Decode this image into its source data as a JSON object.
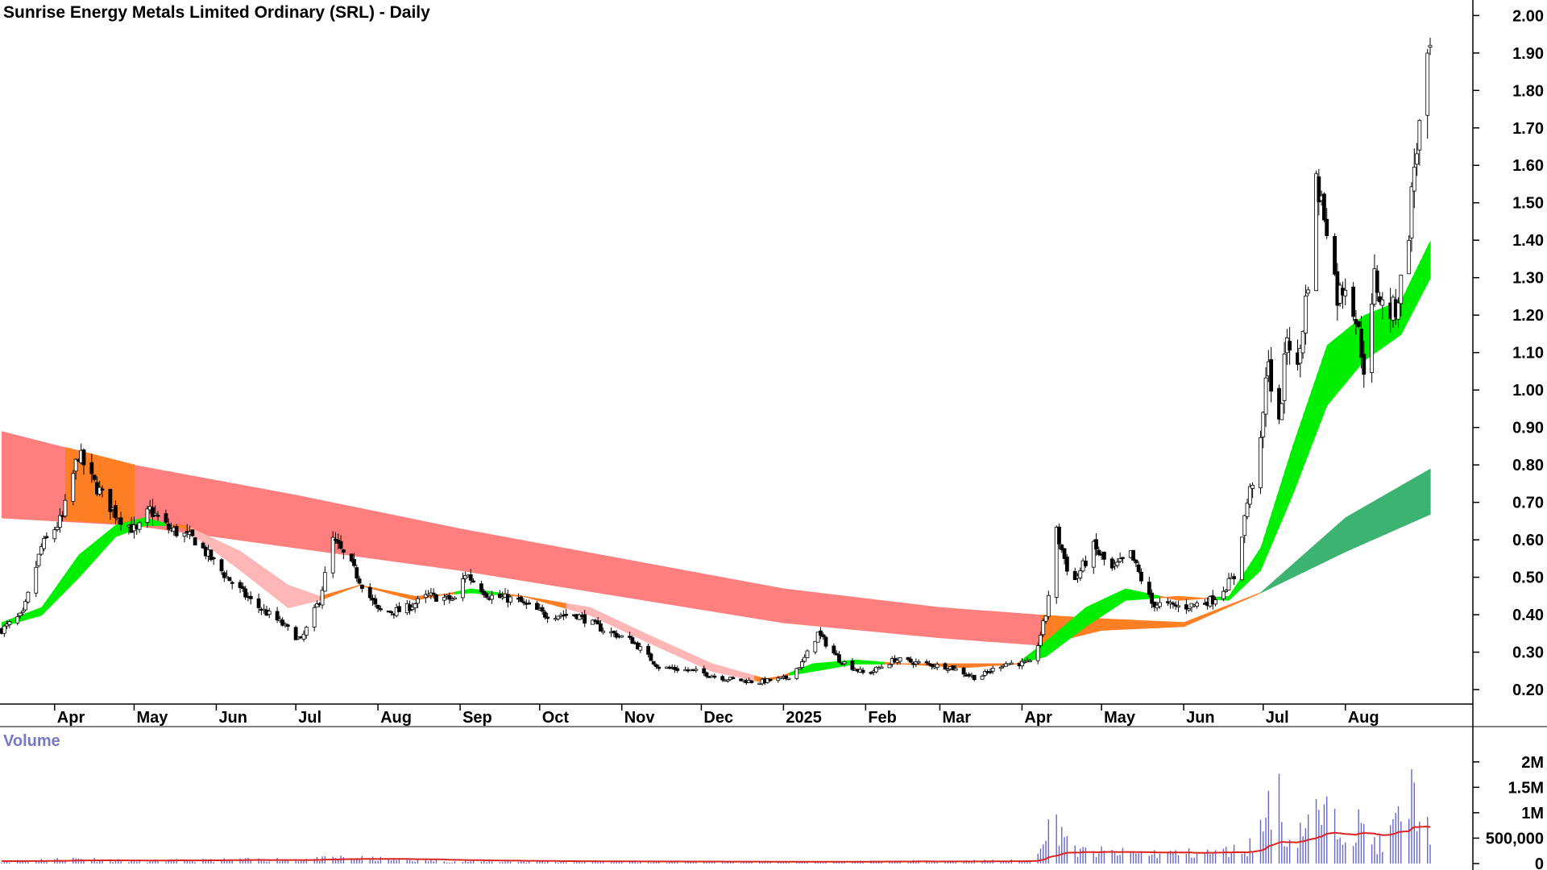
{
  "chart_data": [
    {
      "type": "candlestick",
      "title": "Sunrise Energy Metals Limited Ordinary (SRL) - Daily",
      "y_scale": "linear",
      "ylim": [
        0.17,
        2.02
      ],
      "y_ticks": [
        "2.00",
        "1.90",
        "1.80",
        "1.70",
        "1.60",
        "1.50",
        "1.40",
        "1.30",
        "1.20",
        "1.10",
        "1.00",
        "0.90",
        "0.80",
        "0.70",
        "0.60",
        "0.50",
        "0.40",
        "0.30",
        "0.20"
      ],
      "x_ticks": [
        "Apr",
        "May",
        "Jun",
        "Jul",
        "Aug",
        "Sep",
        "Oct",
        "Nov",
        "Dec",
        "2025",
        "Feb",
        "Mar",
        "Apr",
        "May",
        "Jun",
        "Jul",
        "Aug"
      ],
      "price_path": [
        {
          "date": "2024-03-12",
          "close": 0.36
        },
        {
          "date": "2024-03-20",
          "close": 0.4
        },
        {
          "date": "2024-03-27",
          "close": 0.58
        },
        {
          "date": "2024-04-04",
          "close": 0.66
        },
        {
          "date": "2024-04-10",
          "close": 0.83
        },
        {
          "date": "2024-04-15",
          "close": 0.76
        },
        {
          "date": "2024-04-24",
          "close": 0.67
        },
        {
          "date": "2024-05-02",
          "close": 0.62
        },
        {
          "date": "2024-05-07",
          "close": 0.68
        },
        {
          "date": "2024-05-14",
          "close": 0.63
        },
        {
          "date": "2024-05-24",
          "close": 0.6
        },
        {
          "date": "2024-06-05",
          "close": 0.5
        },
        {
          "date": "2024-06-15",
          "close": 0.43
        },
        {
          "date": "2024-06-25",
          "close": 0.38
        },
        {
          "date": "2024-07-03",
          "close": 0.33
        },
        {
          "date": "2024-07-10",
          "close": 0.44
        },
        {
          "date": "2024-07-15",
          "close": 0.6
        },
        {
          "date": "2024-07-22",
          "close": 0.53
        },
        {
          "date": "2024-08-01",
          "close": 0.41
        },
        {
          "date": "2024-08-10",
          "close": 0.41
        },
        {
          "date": "2024-08-20",
          "close": 0.45
        },
        {
          "date": "2024-08-30",
          "close": 0.44
        },
        {
          "date": "2024-09-03",
          "close": 0.51
        },
        {
          "date": "2024-09-12",
          "close": 0.45
        },
        {
          "date": "2024-09-22",
          "close": 0.44
        },
        {
          "date": "2024-10-03",
          "close": 0.4
        },
        {
          "date": "2024-10-15",
          "close": 0.4
        },
        {
          "date": "2024-10-25",
          "close": 0.36
        },
        {
          "date": "2024-11-05",
          "close": 0.33
        },
        {
          "date": "2024-11-15",
          "close": 0.26
        },
        {
          "date": "2024-11-28",
          "close": 0.25
        },
        {
          "date": "2024-12-10",
          "close": 0.23
        },
        {
          "date": "2024-12-22",
          "close": 0.22
        },
        {
          "date": "2025-01-02",
          "close": 0.23
        },
        {
          "date": "2025-01-08",
          "close": 0.27
        },
        {
          "date": "2025-01-14",
          "close": 0.35
        },
        {
          "date": "2025-01-22",
          "close": 0.28
        },
        {
          "date": "2025-02-01",
          "close": 0.24
        },
        {
          "date": "2025-02-12",
          "close": 0.28
        },
        {
          "date": "2025-02-22",
          "close": 0.27
        },
        {
          "date": "2025-03-05",
          "close": 0.26
        },
        {
          "date": "2025-03-15",
          "close": 0.23
        },
        {
          "date": "2025-03-25",
          "close": 0.27
        },
        {
          "date": "2025-04-05",
          "close": 0.27
        },
        {
          "date": "2025-04-10",
          "close": 0.4
        },
        {
          "date": "2025-04-14",
          "close": 0.62
        },
        {
          "date": "2025-04-20",
          "close": 0.48
        },
        {
          "date": "2025-04-28",
          "close": 0.58
        },
        {
          "date": "2025-05-05",
          "close": 0.52
        },
        {
          "date": "2025-05-12",
          "close": 0.56
        },
        {
          "date": "2025-05-20",
          "close": 0.43
        },
        {
          "date": "2025-06-01",
          "close": 0.42
        },
        {
          "date": "2025-06-12",
          "close": 0.44
        },
        {
          "date": "2025-06-20",
          "close": 0.5
        },
        {
          "date": "2025-06-25",
          "close": 0.7
        },
        {
          "date": "2025-06-30",
          "close": 0.85
        },
        {
          "date": "2025-07-03",
          "close": 1.1
        },
        {
          "date": "2025-07-06",
          "close": 0.82
        },
        {
          "date": "2025-07-10",
          "close": 1.15
        },
        {
          "date": "2025-07-14",
          "close": 1.05
        },
        {
          "date": "2025-07-18",
          "close": 1.3
        },
        {
          "date": "2025-07-21",
          "close": 1.55
        },
        {
          "date": "2025-07-25",
          "close": 1.45
        },
        {
          "date": "2025-07-29",
          "close": 1.25
        },
        {
          "date": "2025-08-02",
          "close": 1.3
        },
        {
          "date": "2025-08-06",
          "close": 1.15
        },
        {
          "date": "2025-08-09",
          "close": 1.02
        },
        {
          "date": "2025-08-12",
          "close": 1.3
        },
        {
          "date": "2025-08-16",
          "close": 1.2
        },
        {
          "date": "2025-08-20",
          "close": 1.22
        },
        {
          "date": "2025-08-24",
          "close": 1.35
        },
        {
          "date": "2025-08-27",
          "close": 1.6
        },
        {
          "date": "2025-08-30",
          "close": 1.75
        },
        {
          "date": "2025-09-02",
          "close": 1.9
        }
      ],
      "short_ma_ribbon": [
        {
          "date": "2024-03-12",
          "fast": 0.38,
          "slow": 0.37
        },
        {
          "date": "2024-03-27",
          "fast": 0.42,
          "slow": 0.4
        },
        {
          "date": "2024-04-10",
          "fast": 0.56,
          "slow": 0.5
        },
        {
          "date": "2024-04-24",
          "fast": 0.64,
          "slow": 0.61
        },
        {
          "date": "2024-05-05",
          "fast": 0.66,
          "slow": 0.64
        },
        {
          "date": "2024-05-20",
          "fast": 0.63,
          "slow": 0.64
        },
        {
          "date": "2024-06-10",
          "fast": 0.52,
          "slow": 0.57
        },
        {
          "date": "2024-06-28",
          "fast": 0.42,
          "slow": 0.48
        },
        {
          "date": "2024-07-10",
          "fast": 0.44,
          "slow": 0.45
        },
        {
          "date": "2024-07-25",
          "fast": 0.48,
          "slow": 0.48
        },
        {
          "date": "2024-08-15",
          "fast": 0.44,
          "slow": 0.45
        },
        {
          "date": "2024-09-05",
          "fast": 0.47,
          "slow": 0.46
        },
        {
          "date": "2024-09-25",
          "fast": 0.45,
          "slow": 0.45
        },
        {
          "date": "2024-10-20",
          "fast": 0.4,
          "slow": 0.42
        },
        {
          "date": "2024-11-10",
          "fast": 0.33,
          "slow": 0.35
        },
        {
          "date": "2024-12-05",
          "fast": 0.25,
          "slow": 0.27
        },
        {
          "date": "2024-12-25",
          "fast": 0.22,
          "slow": 0.23
        },
        {
          "date": "2025-01-12",
          "fast": 0.27,
          "slow": 0.25
        },
        {
          "date": "2025-01-28",
          "fast": 0.28,
          "slow": 0.27
        },
        {
          "date": "2025-02-15",
          "fast": 0.27,
          "slow": 0.27
        },
        {
          "date": "2025-03-10",
          "fast": 0.26,
          "slow": 0.27
        },
        {
          "date": "2025-03-30",
          "fast": 0.27,
          "slow": 0.27
        },
        {
          "date": "2025-04-10",
          "fast": 0.33,
          "slow": 0.29
        },
        {
          "date": "2025-04-25",
          "fast": 0.42,
          "slow": 0.37
        },
        {
          "date": "2025-05-10",
          "fast": 0.47,
          "slow": 0.44
        },
        {
          "date": "2025-05-30",
          "fast": 0.44,
          "slow": 0.45
        },
        {
          "date": "2025-06-18",
          "fast": 0.45,
          "slow": 0.44
        },
        {
          "date": "2025-06-30",
          "fast": 0.58,
          "slow": 0.52
        },
        {
          "date": "2025-07-12",
          "fast": 0.85,
          "slow": 0.72
        },
        {
          "date": "2025-07-25",
          "fast": 1.12,
          "slow": 0.96
        },
        {
          "date": "2025-08-08",
          "fast": 1.2,
          "slow": 1.08
        },
        {
          "date": "2025-08-22",
          "fast": 1.24,
          "slow": 1.15
        },
        {
          "date": "2025-09-02",
          "fast": 1.4,
          "slow": 1.3
        }
      ],
      "long_ma_ribbon": [
        {
          "date": "2024-03-12",
          "fast": 0.89,
          "slow": 0.66
        },
        {
          "date": "2024-05-01",
          "fast": 0.8,
          "slow": 0.64
        },
        {
          "date": "2024-07-01",
          "fast": 0.72,
          "slow": 0.58
        },
        {
          "date": "2024-09-01",
          "fast": 0.63,
          "slow": 0.52
        },
        {
          "date": "2024-11-01",
          "fast": 0.55,
          "slow": 0.45
        },
        {
          "date": "2025-01-01",
          "fast": 0.47,
          "slow": 0.38
        },
        {
          "date": "2025-03-01",
          "fast": 0.42,
          "slow": 0.34
        },
        {
          "date": "2025-04-08",
          "fast": 0.4,
          "slow": 0.32
        },
        {
          "date": "2025-05-01",
          "fast": 0.39,
          "slow": 0.36
        },
        {
          "date": "2025-06-01",
          "fast": 0.38,
          "slow": 0.37
        },
        {
          "date": "2025-06-30",
          "fast": 0.46,
          "slow": 0.46
        },
        {
          "date": "2025-08-01",
          "fast": 0.66,
          "slow": 0.57
        },
        {
          "date": "2025-09-02",
          "fast": 0.79,
          "slow": 0.67
        }
      ],
      "colors": {
        "bull_ribbon": "#00ee00",
        "bear_ribbon": "#ff7f7f",
        "transition_ribbon": "#ff7f24",
        "long_up_ribbon": "#3cb371",
        "candle": "#000000"
      }
    },
    {
      "type": "bar",
      "title": "Volume",
      "ylim": [
        0,
        2250000
      ],
      "y_ticks": [
        "2M",
        "1.5M",
        "1M",
        "500,000",
        "0"
      ],
      "volume_profile": [
        {
          "date": "2024-03-12",
          "v": 50000
        },
        {
          "date": "2024-04-10",
          "v": 120000
        },
        {
          "date": "2024-05-01",
          "v": 60000
        },
        {
          "date": "2024-07-10",
          "v": 110000
        },
        {
          "date": "2024-07-18",
          "v": 140000
        },
        {
          "date": "2024-09-01",
          "v": 50000
        },
        {
          "date": "2025-01-10",
          "v": 40000
        },
        {
          "date": "2025-04-05",
          "v": 70000
        },
        {
          "date": "2025-04-10",
          "v": 1000000
        },
        {
          "date": "2025-04-12",
          "v": 600000
        },
        {
          "date": "2025-04-14",
          "v": 1000000
        },
        {
          "date": "2025-04-16",
          "v": 900000
        },
        {
          "date": "2025-04-20",
          "v": 300000
        },
        {
          "date": "2025-05-10",
          "v": 250000
        },
        {
          "date": "2025-06-10",
          "v": 250000
        },
        {
          "date": "2025-06-25",
          "v": 350000
        },
        {
          "date": "2025-07-01",
          "v": 900000
        },
        {
          "date": "2025-07-05",
          "v": 2150000
        },
        {
          "date": "2025-07-10",
          "v": 500000
        },
        {
          "date": "2025-07-20",
          "v": 1150000
        },
        {
          "date": "2025-08-05",
          "v": 950000
        },
        {
          "date": "2025-08-15",
          "v": 400000
        },
        {
          "date": "2025-08-27",
          "v": 1700000
        },
        {
          "date": "2025-09-01",
          "v": 800000
        },
        {
          "date": "2025-09-02",
          "v": 950000
        }
      ],
      "avg_line_color": "#dd2222",
      "bar_color": "#6666cc"
    }
  ]
}
